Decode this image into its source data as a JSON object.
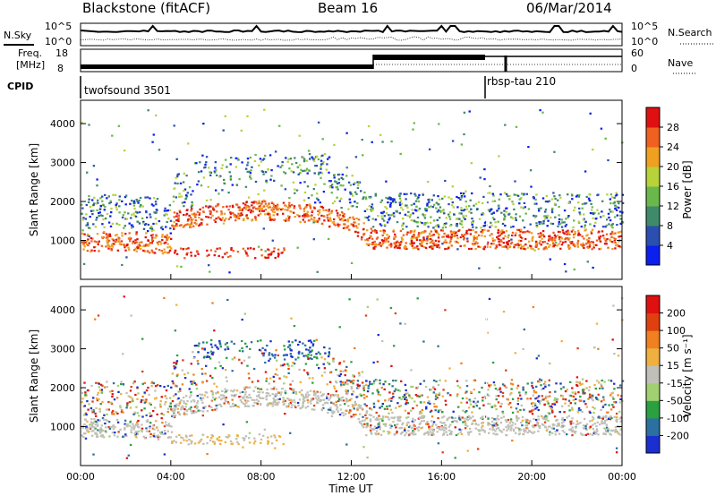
{
  "header": {
    "station": "Blackstone (fitACF)",
    "beam": "Beam 16",
    "date": "06/Mar/2014"
  },
  "sky_panel": {
    "left_label": "N.Sky",
    "right_label": "N.Search",
    "left_ticks": [
      "10^5",
      "10^0"
    ],
    "right_ticks": [
      "10^5",
      "10^0"
    ]
  },
  "freq_panel": {
    "left_label_1": "Freq.",
    "left_label_2": "[MHz]",
    "right_label": "Nave",
    "left_ticks": [
      "18",
      "8"
    ],
    "right_ticks": [
      "60",
      "0"
    ]
  },
  "cpid": {
    "label": "CPID",
    "segments": [
      {
        "name": "twofsound 3501",
        "start_hour": 0
      },
      {
        "name": "rbsp-tau 210",
        "start_hour": 18
      }
    ]
  },
  "chart_data": [
    {
      "type": "heatmap",
      "name": "Power",
      "ylabel": "Slant Range [km]",
      "yticks": [
        "1000",
        "2000",
        "3000",
        "4000"
      ],
      "xticks": [
        "00:00",
        "04:00",
        "08:00",
        "12:00",
        "16:00",
        "20:00",
        "00:00"
      ],
      "colorbar": {
        "label": "Power [dB]",
        "ticks": [
          "4",
          "8",
          "12",
          "16",
          "20",
          "24",
          "28"
        ],
        "colors": [
          "#0a1ff0",
          "#2a4fb0",
          "#3f8a6a",
          "#6ab84a",
          "#b8d23a",
          "#f0a020",
          "#f06020",
          "#e01010"
        ]
      }
    },
    {
      "type": "heatmap",
      "name": "Velocity",
      "ylabel": "Slant Range [km]",
      "yticks": [
        "1000",
        "2000",
        "3000",
        "4000"
      ],
      "xticks": [
        "00:00",
        "04:00",
        "08:00",
        "12:00",
        "16:00",
        "20:00",
        "00:00"
      ],
      "xlabel": "Time UT",
      "colorbar": {
        "label": "Velocity [m s⁻¹]",
        "ticks": [
          "200",
          "100",
          "50",
          "15",
          "-15",
          "-50",
          "-100",
          "-200"
        ],
        "colors": [
          "#1a2fd0",
          "#2a70a0",
          "#2aa040",
          "#a0d070",
          "#c0c0b8",
          "#f0b040",
          "#f08020",
          "#e04010",
          "#e01010"
        ]
      }
    }
  ]
}
